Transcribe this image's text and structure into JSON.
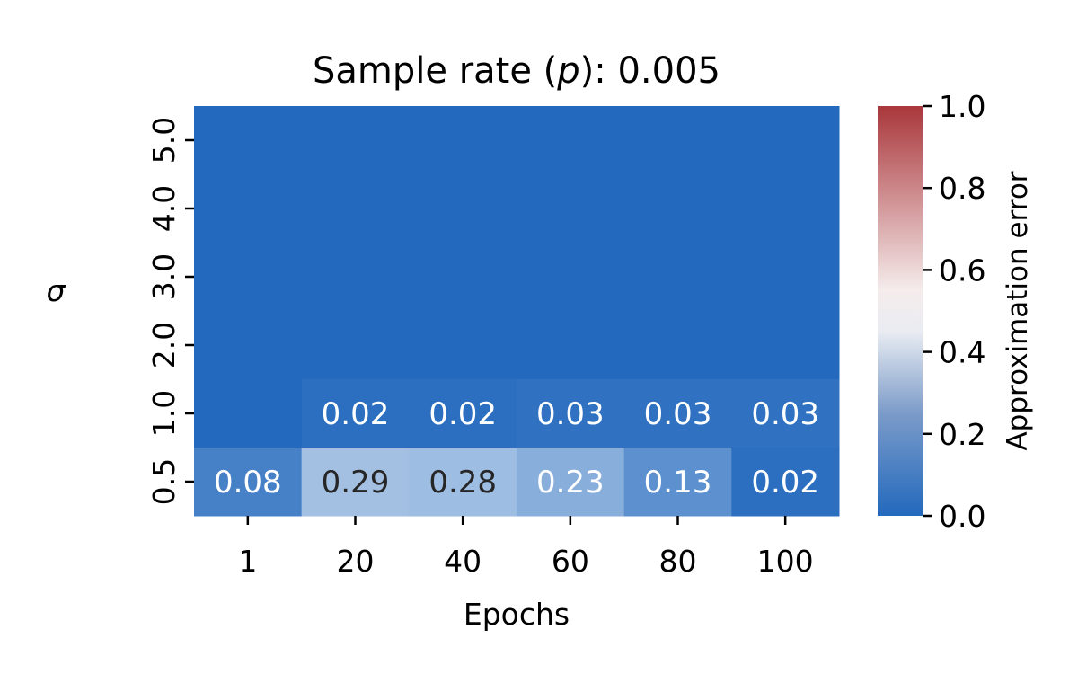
{
  "chart_data": {
    "type": "heatmap",
    "title": "Sample rate (p): 0.005",
    "title_parts": {
      "prefix": "Sample rate (",
      "italic": "p",
      "suffix": "): 0.005"
    },
    "xlabel": "Epochs",
    "ylabel": "σ",
    "x_categories": [
      "1",
      "20",
      "40",
      "60",
      "80",
      "100"
    ],
    "y_categories": [
      "5.0",
      "4.0",
      "3.0",
      "2.0",
      "1.0",
      "0.5"
    ],
    "values": [
      [
        0.0,
        0.0,
        0.0,
        0.0,
        0.0,
        0.0
      ],
      [
        0.0,
        0.0,
        0.0,
        0.0,
        0.0,
        0.0
      ],
      [
        0.0,
        0.0,
        0.0,
        0.0,
        0.0,
        0.0
      ],
      [
        0.0,
        0.0,
        0.0,
        0.0,
        0.0,
        0.0
      ],
      [
        0.0,
        0.02,
        0.02,
        0.03,
        0.03,
        0.03
      ],
      [
        0.08,
        0.29,
        0.28,
        0.23,
        0.13,
        0.02
      ]
    ],
    "annotations": [
      [
        "",
        "",
        "",
        "",
        "",
        ""
      ],
      [
        "",
        "",
        "",
        "",
        "",
        ""
      ],
      [
        "",
        "",
        "",
        "",
        "",
        ""
      ],
      [
        "",
        "",
        "",
        "",
        "",
        ""
      ],
      [
        "",
        "0.02",
        "0.02",
        "0.03",
        "0.03",
        "0.03"
      ],
      [
        "0.08",
        "0.29",
        "0.28",
        "0.23",
        "0.13",
        "0.02"
      ]
    ],
    "colorbar": {
      "label": "Approximation error",
      "range": [
        0.0,
        1.0
      ],
      "ticks": [
        "0.0",
        "0.2",
        "0.4",
        "0.6",
        "0.8",
        "1.0"
      ],
      "colormap": [
        "#2369bd",
        "#ffffff",
        "#a9373b"
      ]
    }
  }
}
